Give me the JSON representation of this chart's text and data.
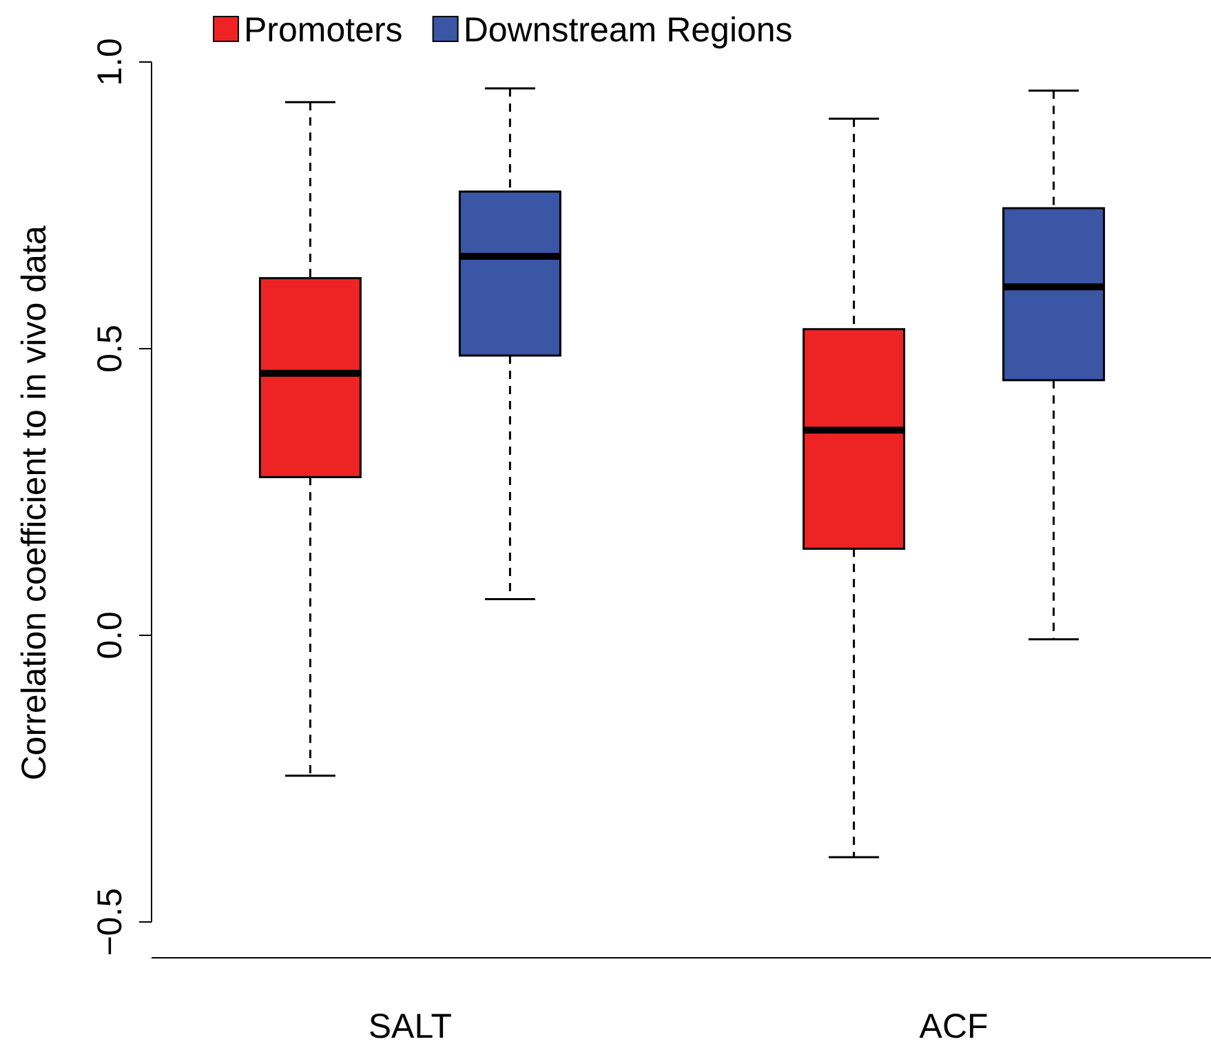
{
  "chart_data": {
    "type": "box",
    "ylabel": "Correlation coefficient to in vivo data",
    "categories": [
      "SALT",
      "ACF"
    ],
    "ylim": [
      -0.5625,
      1.0
    ],
    "yticks": [
      {
        "value": -0.5,
        "label": "−0.5"
      },
      {
        "value": 0,
        "label": "0.0"
      },
      {
        "value": 0.5,
        "label": "0.5"
      },
      {
        "value": 1,
        "label": "1.0"
      }
    ],
    "grid": false,
    "legend": "top left",
    "series": [
      {
        "name": "Promoters",
        "color": "#ee2424",
        "boxes": [
          {
            "low": -0.245,
            "q1": 0.276,
            "median": 0.457,
            "q3": 0.623,
            "high": 0.93
          },
          {
            "low": -0.387,
            "q1": 0.151,
            "median": 0.358,
            "q3": 0.534,
            "high": 0.901
          }
        ]
      },
      {
        "name": "Downstream Regions",
        "color": "#3a56a5",
        "boxes": [
          {
            "low": 0.063,
            "q1": 0.488,
            "median": 0.661,
            "q3": 0.774,
            "high": 0.954
          },
          {
            "low": -0.007,
            "q1": 0.445,
            "median": 0.608,
            "q3": 0.745,
            "high": 0.95
          }
        ]
      }
    ]
  }
}
